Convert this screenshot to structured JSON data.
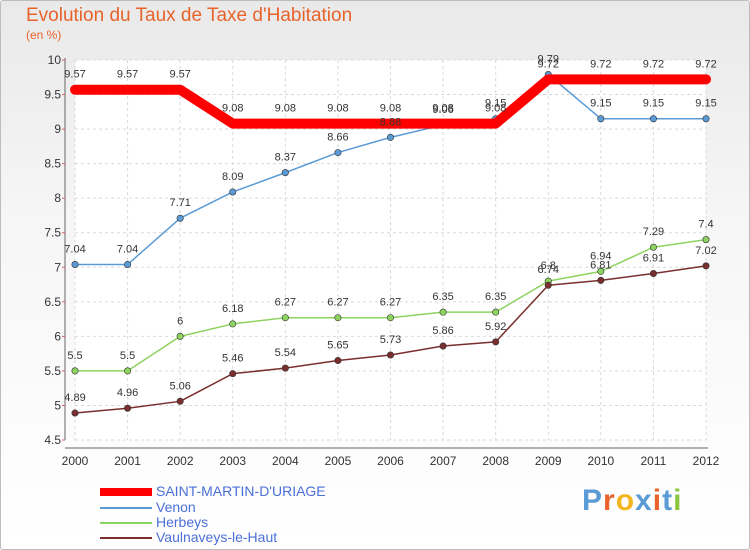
{
  "header": {
    "title": "Evolution du Taux de Taxe d'Habitation",
    "subtitle": "(en %)"
  },
  "brand": {
    "text": "Proxiti",
    "letter_colors": [
      "#5b9bd5",
      "#e8632a",
      "#f3b61f",
      "#5b9bd5",
      "#e8632a",
      "#5b9bd5",
      "#8dc63f"
    ]
  },
  "chart_data": {
    "type": "line",
    "title": "Evolution du Taux de Taxe d'Habitation",
    "subtitle": "(en %)",
    "xlabel": "",
    "ylabel": "",
    "x": [
      "2000",
      "2001",
      "2002",
      "2003",
      "2004",
      "2005",
      "2006",
      "2007",
      "2008",
      "2009",
      "2010",
      "2011",
      "2012"
    ],
    "ylim": [
      4.5,
      10
    ],
    "yticks": [
      "4.5",
      "5",
      "5.5",
      "6",
      "6.5",
      "7",
      "7.5",
      "8",
      "8.5",
      "9",
      "9.5",
      "10"
    ],
    "grid": true,
    "legend_position": "bottom-left",
    "series": [
      {
        "name": "SAINT-MARTIN-D'URIAGE",
        "color": "#ff0000",
        "values": [
          9.57,
          9.57,
          9.57,
          9.08,
          9.08,
          9.08,
          9.08,
          9.08,
          9.08,
          9.72,
          9.72,
          9.72,
          9.72
        ],
        "labels": [
          "9.57",
          "9.57",
          "9.57",
          "9.08",
          "9.08",
          "9.08",
          "9.08",
          "9.08",
          "9.08",
          "9.72",
          "9.72",
          "9.72",
          "9.72"
        ]
      },
      {
        "name": "Venon",
        "color": "#5b9bd5",
        "values": [
          7.04,
          7.04,
          7.71,
          8.09,
          8.37,
          8.66,
          8.88,
          9.06,
          9.15,
          9.79,
          9.15,
          9.15,
          9.15
        ],
        "labels": [
          "7.04",
          "7.04",
          "7.71",
          "8.09",
          "8.37",
          "8.66",
          "8.88",
          "9.06",
          "9.15",
          "9.79",
          "9.15",
          "9.15",
          "9.15"
        ]
      },
      {
        "name": "Herbeys",
        "color": "#8dd35f",
        "values": [
          5.5,
          5.5,
          6,
          6.18,
          6.27,
          6.27,
          6.27,
          6.35,
          6.35,
          6.8,
          6.94,
          7.29,
          7.4
        ],
        "labels": [
          "5.5",
          "5.5",
          "6",
          "6.18",
          "6.27",
          "6.27",
          "6.27",
          "6.35",
          "6.35",
          "6.8",
          "6.94",
          "7.29",
          "7.4"
        ]
      },
      {
        "name": "Vaulnaveys-le-Haut",
        "color": "#7a2f2f",
        "values": [
          4.89,
          4.96,
          5.06,
          5.46,
          5.54,
          5.65,
          5.73,
          5.86,
          5.92,
          6.74,
          6.81,
          6.91,
          7.02
        ],
        "labels": [
          "4.89",
          "4.96",
          "5.06",
          "5.46",
          "5.54",
          "5.65",
          "5.73",
          "5.86",
          "5.92",
          "6.74",
          "6.81",
          "6.91",
          "7.02"
        ]
      }
    ]
  }
}
